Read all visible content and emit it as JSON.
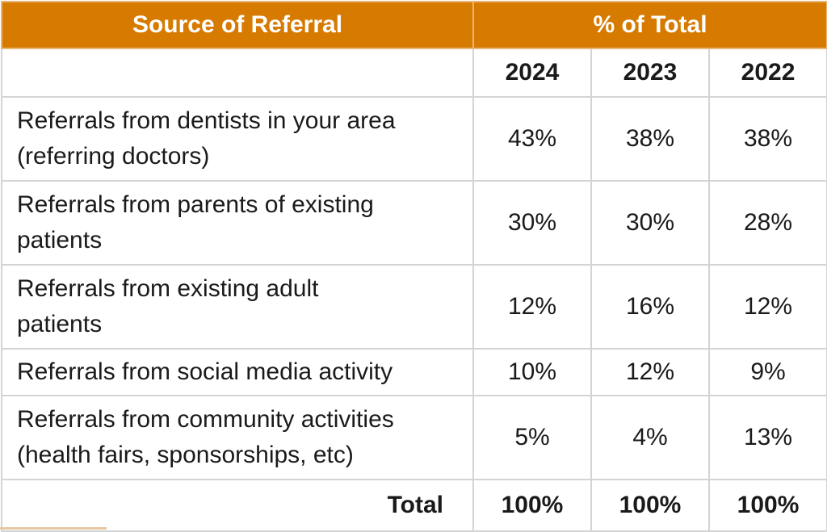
{
  "header": {
    "source_label": "Source of Referral",
    "pct_label": "% of Total"
  },
  "years": [
    "2024",
    "2023",
    "2022"
  ],
  "rows": [
    {
      "line1": "Referrals from dentists in your area",
      "line2": "(referring doctors)",
      "values": [
        "43%",
        "38%",
        "38%"
      ]
    },
    {
      "line1": "Referrals from parents of existing",
      "line2": "patients",
      "values": [
        "30%",
        "30%",
        "28%"
      ]
    },
    {
      "line1": "Referrals from existing adult",
      "line2": "patients",
      "values": [
        "12%",
        "16%",
        "12%"
      ]
    },
    {
      "line1": "Referrals from social media activity",
      "line2": "",
      "values": [
        "10%",
        "12%",
        "9%"
      ]
    },
    {
      "line1": "Referrals from community activities",
      "line2": "(health fairs, sponsorships, etc)",
      "values": [
        "5%",
        "4%",
        "13%"
      ]
    }
  ],
  "total": {
    "label": "Total",
    "values": [
      "100%",
      "100%",
      "100%"
    ]
  },
  "colors": {
    "header_bg": "#d67a00",
    "header_text": "#ffffff",
    "grid": "#d4d4d4"
  }
}
